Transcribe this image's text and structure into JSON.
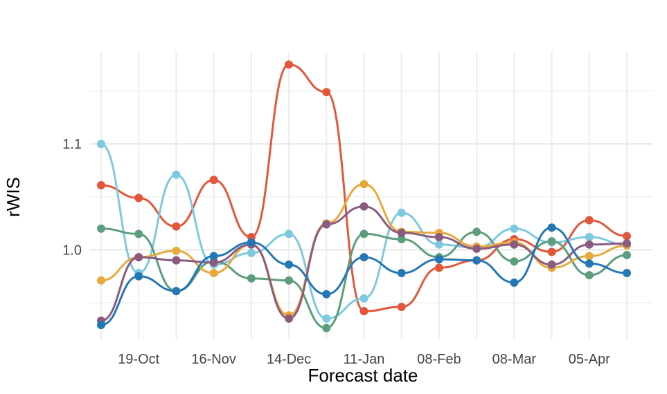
{
  "chart_data": {
    "type": "line",
    "xlabel": "Forecast date",
    "ylabel": "rWIS",
    "categories": [
      null,
      "19-Oct",
      null,
      "16-Nov",
      null,
      "14-Dec",
      null,
      "11-Jan",
      null,
      "08-Feb",
      null,
      "08-Mar",
      null,
      "05-Apr",
      null
    ],
    "ylim": [
      0.916,
      1.187
    ],
    "yticks": [
      {
        "value": 1,
        "label": "1.0"
      },
      {
        "value": 1.1,
        "label": "1.1"
      }
    ],
    "minor_yticks": [
      0.95,
      1.05,
      1.15
    ],
    "grid": true,
    "series": [
      {
        "color": "#e2563a",
        "values": [
          1.061,
          1.049,
          1.022,
          1.066,
          1.012,
          1.175,
          1.149,
          0.942,
          0.946,
          0.983,
          0.99,
          1.01,
          0.998,
          1.028,
          1.013
        ]
      },
      {
        "color": "#7dcae0",
        "values": [
          1.1,
          0.978,
          1.071,
          0.986,
          0.997,
          1.015,
          0.935,
          0.954,
          1.035,
          1.005,
          1.002,
          1.02,
          1.007,
          1.012,
          1.005
        ]
      },
      {
        "color": "#5c9d7b",
        "values": [
          1.02,
          1.015,
          0.961,
          0.989,
          0.973,
          0.971,
          0.926,
          1.015,
          1.01,
          0.993,
          1.017,
          0.989,
          1.008,
          0.976,
          0.995
        ]
      },
      {
        "color": "#e8a83a",
        "values": [
          0.971,
          0.993,
          0.999,
          0.978,
          1.005,
          0.938,
          1.025,
          1.062,
          1.017,
          1.016,
          1.003,
          1.007,
          0.983,
          0.994,
          1.004
        ]
      },
      {
        "color": "#8a5a80",
        "values": [
          0.933,
          0.993,
          0.99,
          0.988,
          1.005,
          0.935,
          1.024,
          1.041,
          1.016,
          1.012,
          1.001,
          1.005,
          0.986,
          1.005,
          1.006
        ]
      },
      {
        "color": "#2477b5",
        "values": [
          0.929,
          0.975,
          0.961,
          0.994,
          1.007,
          0.986,
          0.958,
          0.993,
          0.978,
          0.991,
          0.99,
          0.969,
          1.021,
          0.987,
          0.978
        ]
      }
    ]
  }
}
